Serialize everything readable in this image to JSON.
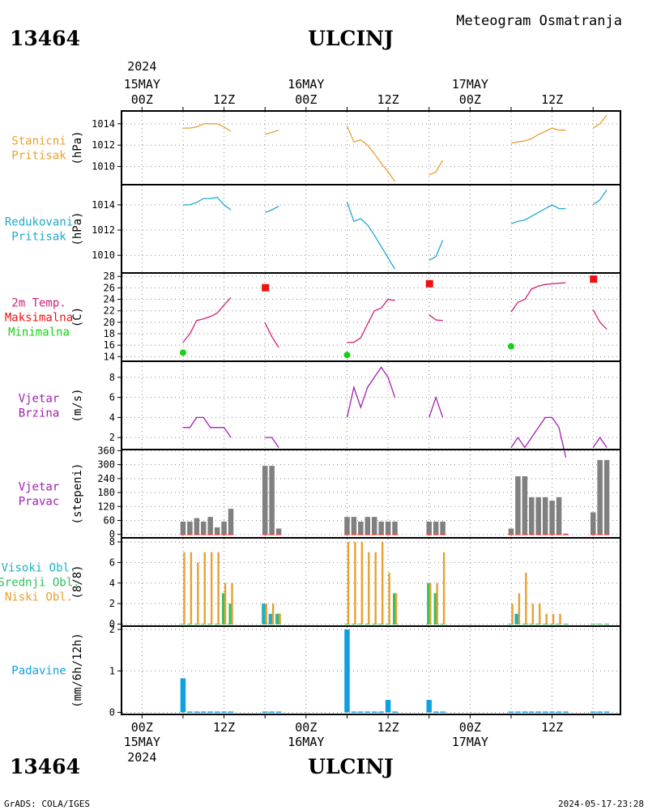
{
  "header": {
    "station_id": "13464",
    "station_name": "ULCINJ",
    "chart_title": "Meteogram Osmatranja"
  },
  "footer": {
    "station_id": "13464",
    "station_name": "ULCINJ",
    "credit": "GrADS: COLA/IGES",
    "timestamp": "2024-05-17-23:28"
  },
  "time_axis": {
    "year": "2024",
    "day_labels": [
      {
        "t": 0,
        "label": "15MAY"
      },
      {
        "t": 24,
        "label": "16MAY"
      },
      {
        "t": 48,
        "label": "17MAY"
      }
    ],
    "hour_ticks": [
      {
        "t": 0,
        "label": "00Z"
      },
      {
        "t": 12,
        "label": "12Z"
      },
      {
        "t": 24,
        "label": "00Z"
      },
      {
        "t": 36,
        "label": "12Z"
      },
      {
        "t": 48,
        "label": "00Z"
      },
      {
        "t": 60,
        "label": "12Z"
      }
    ],
    "range_hours": [
      -3,
      70
    ]
  },
  "colors": {
    "station_pressure": "#e8a030",
    "reduced_pressure": "#20a8d0",
    "temp_label": "#d0207a",
    "max_temp": "#f01010",
    "min_temp": "#18d018",
    "wind": "#a020b0",
    "wind_dir_bar": "#808080",
    "wind_dir_base": "#e05050",
    "cloud_high": "#20b0c0",
    "cloud_mid": "#30c060",
    "cloud_low": "#e8a030",
    "precip": "#10a0e0"
  },
  "chart_data": [
    {
      "type": "line",
      "panel": "station_pressure",
      "labels": [
        "Stanicni",
        "Pritisak"
      ],
      "ylabel": "(hPa)",
      "ylim": [
        1008.3,
        1015.2
      ],
      "yticks": [
        1010,
        1012,
        1014
      ],
      "series": [
        {
          "x": [
            6,
            7,
            8,
            9,
            10,
            11,
            12,
            13
          ],
          "y": [
            1013.6,
            1013.6,
            1013.7,
            1014.0,
            1014.0,
            1014.0,
            1013.7,
            1013.3
          ]
        },
        {
          "x": [
            18,
            19,
            20
          ],
          "y": [
            1013.0,
            1013.2,
            1013.4
          ]
        },
        {
          "x": [
            30,
            31,
            32,
            33,
            34,
            35,
            36,
            37
          ],
          "y": [
            1013.8,
            1012.3,
            1012.5,
            1012.0,
            1011.2,
            1010.3,
            1009.5,
            1008.6
          ]
        },
        {
          "x": [
            42,
            43,
            44
          ],
          "y": [
            1009.2,
            1009.5,
            1010.6
          ]
        },
        {
          "x": [
            54,
            55,
            56,
            57,
            58,
            59,
            60,
            61,
            62
          ],
          "y": [
            1012.2,
            1012.3,
            1012.4,
            1012.6,
            1013.0,
            1013.3,
            1013.6,
            1013.4,
            1013.4
          ]
        },
        {
          "x": [
            66,
            67,
            68
          ],
          "y": [
            1013.6,
            1014.0,
            1014.8
          ]
        }
      ]
    },
    {
      "type": "line",
      "panel": "reduced_pressure",
      "labels": [
        "Redukovani",
        "Pritisak"
      ],
      "ylabel": "(hPa)",
      "ylim": [
        1008.6,
        1015.6
      ],
      "yticks": [
        1010,
        1012,
        1014
      ],
      "series": [
        {
          "x": [
            6,
            7,
            8,
            9,
            10,
            11,
            12,
            13
          ],
          "y": [
            1014.0,
            1014.0,
            1014.2,
            1014.5,
            1014.5,
            1014.6,
            1014.0,
            1013.6
          ]
        },
        {
          "x": [
            18,
            19,
            20
          ],
          "y": [
            1013.4,
            1013.6,
            1013.9
          ]
        },
        {
          "x": [
            30,
            31,
            32,
            33,
            34,
            35,
            36,
            37
          ],
          "y": [
            1014.2,
            1012.7,
            1012.9,
            1012.4,
            1011.6,
            1010.7,
            1009.8,
            1008.9
          ]
        },
        {
          "x": [
            42,
            43,
            44
          ],
          "y": [
            1009.6,
            1009.9,
            1011.2
          ]
        },
        {
          "x": [
            54,
            55,
            56,
            57,
            58,
            59,
            60,
            61,
            62
          ],
          "y": [
            1012.5,
            1012.7,
            1012.8,
            1013.1,
            1013.4,
            1013.7,
            1014.0,
            1013.7,
            1013.7
          ]
        },
        {
          "x": [
            66,
            67,
            68
          ],
          "y": [
            1014.0,
            1014.4,
            1015.2
          ]
        }
      ]
    },
    {
      "type": "line",
      "panel": "temperature",
      "labels": [
        "2m Temp.",
        "Maksimalna",
        "Minimalna"
      ],
      "ylabel": "(C)",
      "ylim": [
        13.2,
        28.6
      ],
      "yticks": [
        14,
        16,
        18,
        20,
        22,
        24,
        26,
        28
      ],
      "series": [
        {
          "x": [
            6,
            7,
            8,
            9,
            10,
            11,
            12,
            13
          ],
          "y": [
            16.5,
            18.0,
            20.3,
            20.6,
            21.0,
            21.6,
            23.0,
            24.3
          ]
        },
        {
          "x": [
            18,
            19,
            20
          ],
          "y": [
            19.9,
            17.5,
            15.6
          ]
        },
        {
          "x": [
            30,
            31,
            32,
            33,
            34,
            35,
            36,
            37
          ],
          "y": [
            16.5,
            16.5,
            17.3,
            19.7,
            22.0,
            22.5,
            24.0,
            23.8
          ]
        },
        {
          "x": [
            42,
            43,
            44
          ],
          "y": [
            21.3,
            20.4,
            20.3
          ]
        },
        {
          "x": [
            54,
            55,
            56,
            57,
            58,
            59,
            60,
            61,
            62
          ],
          "y": [
            21.8,
            23.5,
            24.0,
            25.8,
            26.3,
            26.6,
            26.7,
            26.8,
            26.9
          ]
        },
        {
          "x": [
            66,
            67,
            68
          ],
          "y": [
            22.2,
            20.0,
            18.8
          ]
        }
      ],
      "max_points": {
        "x": [
          18,
          42,
          66
        ],
        "y": [
          26.1,
          26.8,
          27.6
        ]
      },
      "min_points": {
        "x": [
          6,
          30,
          54
        ],
        "y": [
          14.7,
          14.3,
          15.8
        ]
      }
    },
    {
      "type": "line",
      "panel": "wind_speed",
      "labels": [
        "Vjetar",
        "Brzina"
      ],
      "ylabel": "(m/s)",
      "ylim": [
        0.8,
        9.6
      ],
      "yticks": [
        2,
        4,
        6,
        8
      ],
      "series": [
        {
          "x": [
            6,
            7,
            8,
            9,
            10,
            11,
            12,
            13
          ],
          "y": [
            3,
            3,
            4,
            4,
            3,
            3,
            3,
            2
          ]
        },
        {
          "x": [
            18,
            19,
            20
          ],
          "y": [
            2,
            2,
            1
          ]
        },
        {
          "x": [
            30,
            31,
            32,
            33,
            34,
            35,
            36,
            37
          ],
          "y": [
            4,
            7,
            5,
            7,
            8,
            9,
            8,
            6
          ]
        },
        {
          "x": [
            42,
            43,
            44
          ],
          "y": [
            4,
            6,
            4
          ]
        },
        {
          "x": [
            54,
            55,
            56,
            57,
            58,
            59,
            60,
            61,
            62
          ],
          "y": [
            1,
            2,
            1,
            2,
            3,
            4,
            4,
            3,
            0
          ]
        },
        {
          "x": [
            66,
            67,
            68
          ],
          "y": [
            1,
            2,
            1
          ]
        }
      ]
    },
    {
      "type": "bar",
      "panel": "wind_direction",
      "labels": [
        "Vjetar",
        "Pravac"
      ],
      "ylabel": "(stepeni)",
      "ylim": [
        -15,
        365
      ],
      "yticks": [
        0,
        60,
        120,
        180,
        240,
        300,
        360
      ],
      "x": [
        6,
        7,
        8,
        9,
        10,
        11,
        12,
        13,
        18,
        19,
        20,
        30,
        31,
        32,
        33,
        34,
        35,
        36,
        37,
        42,
        43,
        44,
        54,
        55,
        56,
        57,
        58,
        59,
        60,
        61,
        62,
        66,
        67,
        68
      ],
      "values": [
        55,
        55,
        70,
        55,
        75,
        30,
        55,
        110,
        295,
        295,
        25,
        75,
        75,
        55,
        75,
        75,
        55,
        55,
        55,
        55,
        55,
        55,
        25,
        250,
        250,
        160,
        160,
        160,
        145,
        160,
        0,
        95,
        320,
        320
      ]
    },
    {
      "type": "bar",
      "panel": "clouds",
      "labels": [
        "Visoki Obl.",
        "Srednji Obl.",
        "Niski Obl."
      ],
      "ylabel": "(8/8)",
      "ylim": [
        -0.2,
        8.4
      ],
      "yticks": [
        0,
        2,
        4,
        6,
        8
      ],
      "x": [
        6,
        7,
        8,
        9,
        10,
        11,
        12,
        13,
        18,
        19,
        20,
        30,
        31,
        32,
        33,
        34,
        35,
        36,
        37,
        42,
        43,
        44,
        54,
        55,
        56,
        57,
        58,
        59,
        60,
        61,
        62,
        66,
        67,
        68
      ],
      "series": [
        {
          "name": "Visoki Obl.",
          "values": [
            0,
            0,
            0,
            0,
            0,
            0,
            0,
            0,
            2,
            1,
            1,
            0,
            0,
            0,
            0,
            0,
            0,
            0,
            0,
            0,
            0,
            0,
            0,
            1,
            0,
            0,
            0,
            0,
            0,
            0,
            0,
            0,
            0,
            0
          ]
        },
        {
          "name": "Srednji Obl.",
          "values": [
            0,
            0,
            0,
            0,
            0,
            0,
            3,
            2,
            0,
            0,
            1,
            0,
            0,
            0,
            0,
            0,
            0,
            0,
            3,
            4,
            3,
            0,
            0,
            0,
            0,
            0,
            0,
            0,
            0,
            0,
            0,
            0,
            0,
            0
          ]
        },
        {
          "name": "Niski Obl.",
          "values": [
            7,
            7,
            6,
            7,
            7,
            7,
            4,
            4,
            2,
            2,
            1,
            8,
            8,
            8,
            7,
            7,
            8,
            5,
            3,
            4,
            4,
            7,
            2,
            3,
            5,
            2,
            2,
            1,
            1,
            1,
            0,
            0,
            0,
            0
          ]
        }
      ]
    },
    {
      "type": "bar",
      "panel": "precipitation",
      "labels": [
        "Padavine"
      ],
      "ylabel": "(mm/6h/12h)",
      "ylim": [
        -0.05,
        2.08
      ],
      "yticks": [
        0,
        1,
        2
      ],
      "x": [
        6,
        7,
        8,
        9,
        10,
        11,
        12,
        13,
        18,
        19,
        20,
        30,
        31,
        32,
        33,
        34,
        35,
        36,
        37,
        42,
        43,
        44,
        54,
        55,
        56,
        57,
        58,
        59,
        60,
        61,
        62,
        66,
        67,
        68
      ],
      "values": [
        0.82,
        0.02,
        0.02,
        0.02,
        0.02,
        0.02,
        0.02,
        0.02,
        0.02,
        0.02,
        0.02,
        2.0,
        0.02,
        0.02,
        0.02,
        0.02,
        0.02,
        0.3,
        0.02,
        0.3,
        0.02,
        0.02,
        0.02,
        0.02,
        0.02,
        0.02,
        0.02,
        0.02,
        0.02,
        0.02,
        0.02,
        0.02,
        0.02,
        0.02
      ]
    }
  ]
}
